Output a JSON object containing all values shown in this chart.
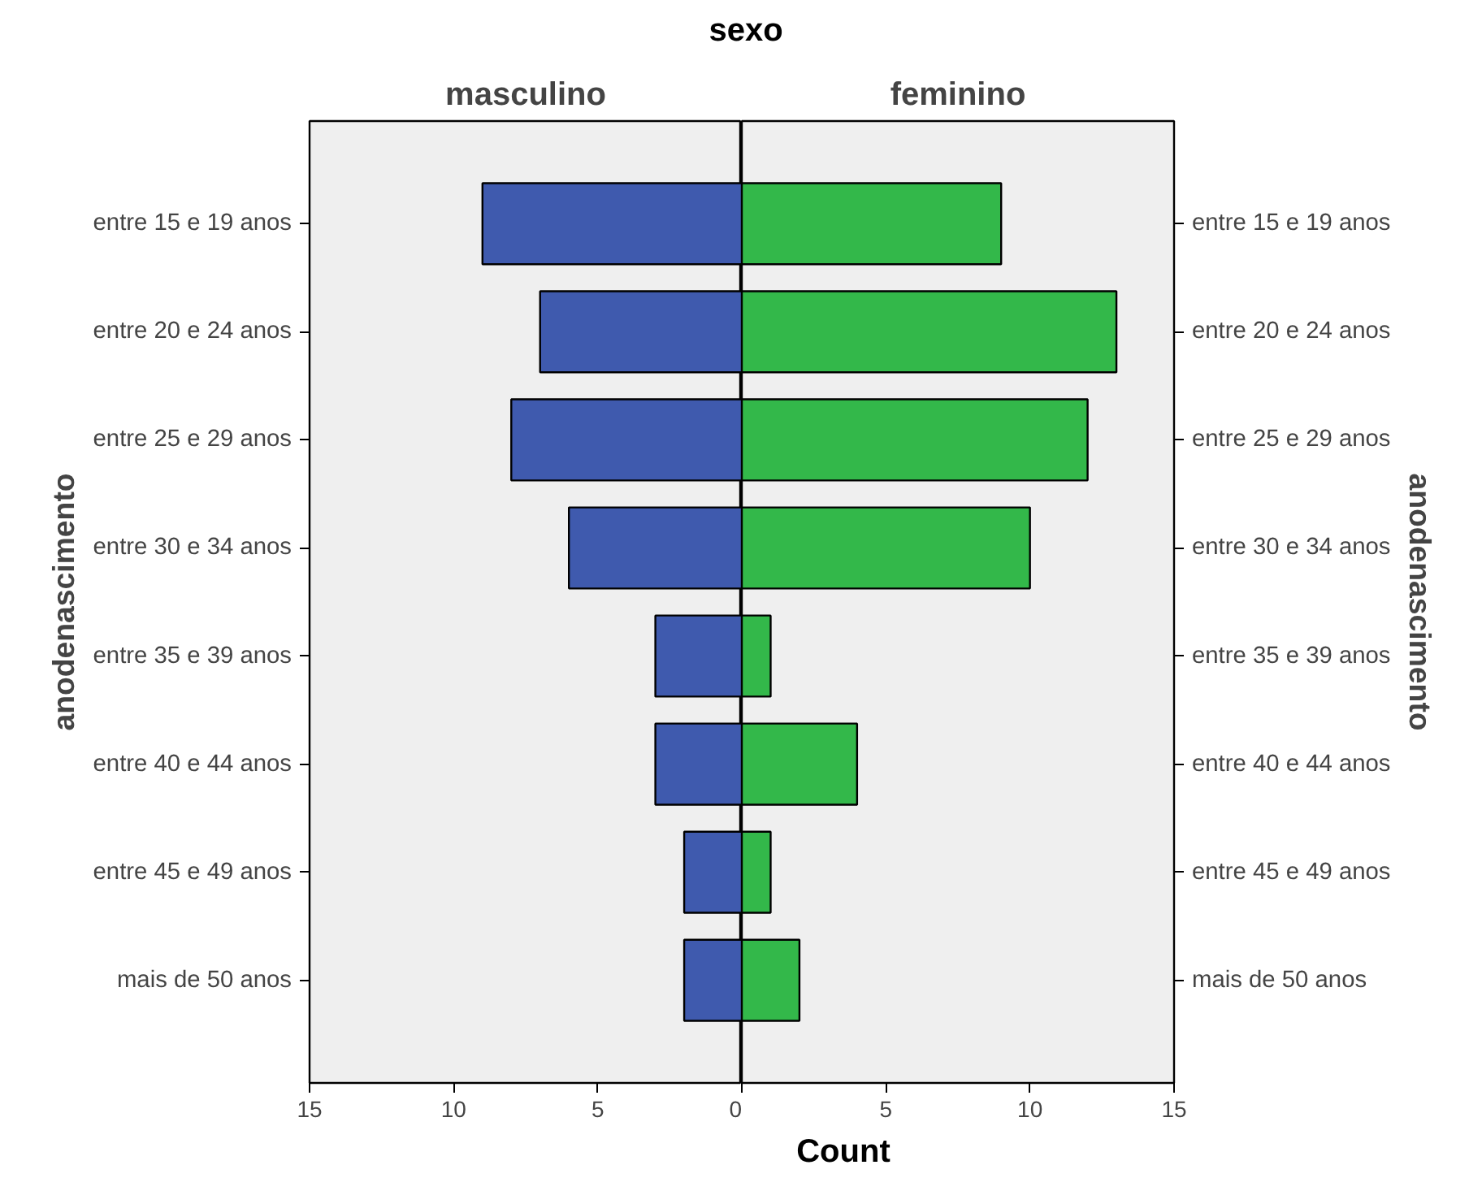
{
  "chart_data": [
    {
      "type": "bar",
      "orientation": "horizontal",
      "title": "masculino",
      "annotations": [
        "sexo"
      ],
      "xlabel": "Count",
      "ylabel": "anodenascimento",
      "categories": [
        "entre 15 e 19 anos",
        "entre 20 e 24 anos",
        "entre 25 e 29 anos",
        "entre 30 e 34 anos",
        "entre 35 e 39 anos",
        "entre 40 e 44 anos",
        "entre 45 e 49 anos",
        "mais de 50 anos"
      ],
      "values": [
        9,
        7,
        8,
        6,
        3,
        3,
        2,
        2
      ],
      "color": "#3f5aae",
      "xlim": [
        15,
        0
      ],
      "xticks": [
        15,
        10,
        5,
        0
      ],
      "grid": false
    },
    {
      "type": "bar",
      "orientation": "horizontal",
      "title": "feminino",
      "y2label": "anodenascimento",
      "categories": [
        "entre 15 e 19 anos",
        "entre 20 e 24 anos",
        "entre 25 e 29 anos",
        "entre 30 e 34 anos",
        "entre 35 e 39 anos",
        "entre 40 e 44 anos",
        "entre 45 e 49 anos",
        "mais de 50 anos"
      ],
      "values": [
        9,
        13,
        12,
        10,
        1,
        4,
        1,
        2
      ],
      "color": "#33b84a",
      "xlim": [
        0,
        15
      ],
      "xticks": [
        {
          "value": 0,
          "label": null
        },
        5,
        10,
        15
      ],
      "grid": false
    }
  ]
}
